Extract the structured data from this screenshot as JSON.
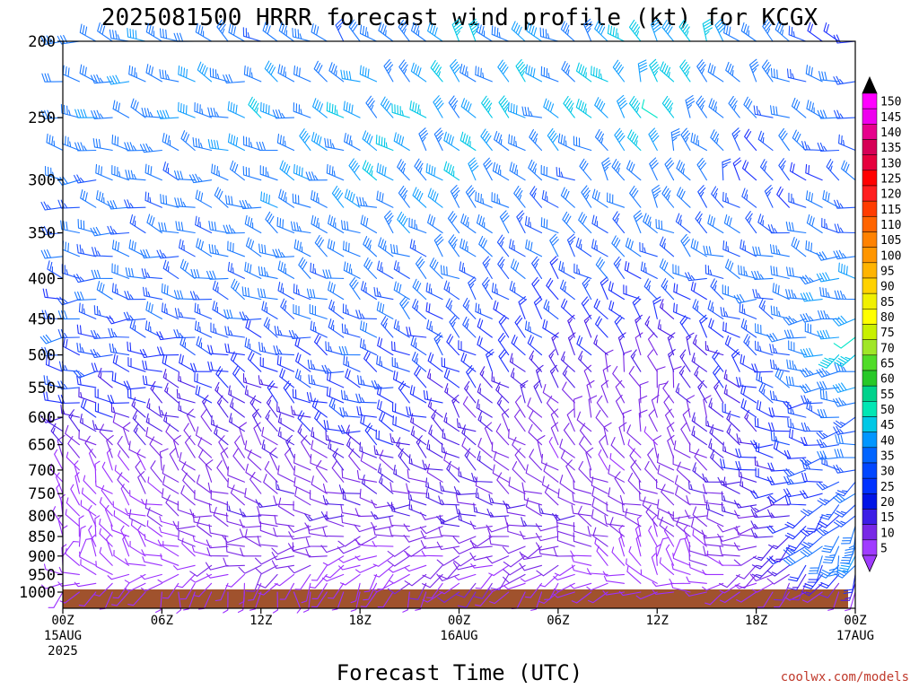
{
  "chart_data": {
    "type": "wind_barbs",
    "title": "2025081500 HRRR forecast wind profile (kt) for KCGX",
    "xlabel": "Forecast Time (UTC)",
    "credit": "coolwx.com/models",
    "units": "kt",
    "y_axis": {
      "scale": "log-pressure",
      "reversed": true,
      "range": [
        1050,
        200
      ],
      "ticks": [
        200,
        250,
        300,
        350,
        400,
        450,
        500,
        550,
        600,
        650,
        700,
        750,
        800,
        850,
        900,
        950,
        1000
      ]
    },
    "x_axis": {
      "range_hours": [
        0,
        48
      ],
      "ticks": [
        {
          "hour": 0,
          "lines": [
            "00Z",
            "15AUG",
            "2025"
          ]
        },
        {
          "hour": 6,
          "lines": [
            "06Z"
          ]
        },
        {
          "hour": 12,
          "lines": [
            "12Z"
          ]
        },
        {
          "hour": 18,
          "lines": [
            "18Z"
          ]
        },
        {
          "hour": 24,
          "lines": [
            "00Z",
            "16AUG"
          ]
        },
        {
          "hour": 30,
          "lines": [
            "06Z"
          ]
        },
        {
          "hour": 36,
          "lines": [
            "12Z"
          ]
        },
        {
          "hour": 42,
          "lines": [
            "18Z"
          ]
        },
        {
          "hour": 48,
          "lines": [
            "00Z",
            "17AUG"
          ]
        }
      ]
    },
    "colorbar": {
      "labels": [
        "150",
        "145",
        "140",
        "135",
        "130",
        "125",
        "120",
        "115",
        "110",
        "105",
        "100",
        "95",
        "90",
        "85",
        "80",
        "75",
        "70",
        "65",
        "60",
        "55",
        "50",
        "45",
        "40",
        "35",
        "30",
        "25",
        "20",
        "15",
        "10",
        "5"
      ],
      "colors": [
        "#ff00ff",
        "#ee00ee",
        "#e6008c",
        "#d60056",
        "#e6003c",
        "#ff0000",
        "#ff1e1e",
        "#ff3c00",
        "#ff6400",
        "#ff8200",
        "#ff9600",
        "#ffb400",
        "#ffd200",
        "#f0f000",
        "#ffff00",
        "#c8f000",
        "#a0e628",
        "#50dc28",
        "#28c828",
        "#00d28c",
        "#00e6b4",
        "#00c8e6",
        "#0096ff",
        "#0064ff",
        "#0046ff",
        "#0032ff",
        "#0014e6",
        "#3c1ee6",
        "#7828e6",
        "#a03cff"
      ],
      "top_arrow_color": "#000000",
      "bottom_arrow_color": "#a03cff"
    },
    "barb_colors": {
      "5": "#9b30ff",
      "10": "#7a28e6",
      "15": "#4b1ee6",
      "20": "#1e32ff",
      "25": "#1e55ff",
      "30": "#1e7bff",
      "40": "#14a0ff",
      "45": "#00c8e6",
      "50": "#00e6c8"
    },
    "ground_color": "#a0522d",
    "levels": [
      1000,
      975,
      950,
      925,
      900,
      875,
      850,
      825,
      800,
      775,
      750,
      725,
      700,
      675,
      650,
      625,
      600,
      575,
      550,
      525,
      500,
      475,
      450,
      425,
      400,
      375,
      350,
      325,
      300,
      275,
      250,
      225,
      200
    ],
    "anchors": {
      "1000": [
        [
          0,
          225,
          5
        ],
        [
          6,
          200,
          5
        ],
        [
          12,
          180,
          5
        ],
        [
          18,
          200,
          6
        ],
        [
          24,
          220,
          8
        ],
        [
          30,
          220,
          5
        ],
        [
          36,
          270,
          5
        ],
        [
          42,
          230,
          6
        ],
        [
          48,
          210,
          6
        ]
      ],
      "900": [
        [
          0,
          20,
          5
        ],
        [
          6,
          300,
          5
        ],
        [
          12,
          270,
          10
        ],
        [
          18,
          250,
          6
        ],
        [
          24,
          250,
          8
        ],
        [
          30,
          250,
          9
        ],
        [
          36,
          20,
          5
        ],
        [
          42,
          240,
          10
        ],
        [
          48,
          200,
          40
        ]
      ],
      "800": [
        [
          0,
          330,
          5
        ],
        [
          6,
          290,
          8
        ],
        [
          12,
          280,
          12
        ],
        [
          18,
          270,
          12
        ],
        [
          24,
          270,
          14
        ],
        [
          30,
          280,
          12
        ],
        [
          36,
          290,
          10
        ],
        [
          42,
          270,
          12
        ],
        [
          48,
          210,
          25
        ]
      ],
      "700": [
        [
          0,
          340,
          6
        ],
        [
          6,
          330,
          8
        ],
        [
          12,
          320,
          10
        ],
        [
          18,
          310,
          12
        ],
        [
          24,
          300,
          14
        ],
        [
          30,
          320,
          8
        ],
        [
          36,
          320,
          8
        ],
        [
          42,
          280,
          18
        ],
        [
          48,
          260,
          28
        ]
      ],
      "600": [
        [
          0,
          280,
          18
        ],
        [
          6,
          300,
          15
        ],
        [
          12,
          320,
          14
        ],
        [
          18,
          280,
          24
        ],
        [
          24,
          310,
          14
        ],
        [
          30,
          330,
          10
        ],
        [
          36,
          350,
          8
        ],
        [
          42,
          300,
          18
        ],
        [
          48,
          260,
          28
        ]
      ],
      "500": [
        [
          0,
          270,
          25
        ],
        [
          6,
          280,
          22
        ],
        [
          12,
          290,
          22
        ],
        [
          18,
          290,
          25
        ],
        [
          24,
          310,
          22
        ],
        [
          30,
          320,
          18
        ],
        [
          36,
          340,
          12
        ],
        [
          42,
          300,
          22
        ],
        [
          48,
          240,
          45
        ]
      ],
      "400": [
        [
          0,
          275,
          25
        ],
        [
          6,
          285,
          28
        ],
        [
          12,
          290,
          30
        ],
        [
          18,
          300,
          30
        ],
        [
          24,
          310,
          28
        ],
        [
          30,
          320,
          25
        ],
        [
          36,
          300,
          25
        ],
        [
          42,
          280,
          30
        ],
        [
          48,
          270,
          35
        ]
      ],
      "300": [
        [
          0,
          275,
          30
        ],
        [
          6,
          285,
          30
        ],
        [
          12,
          290,
          35
        ],
        [
          18,
          300,
          38
        ],
        [
          24,
          320,
          40
        ],
        [
          30,
          300,
          30
        ],
        [
          36,
          330,
          35
        ],
        [
          42,
          330,
          20
        ],
        [
          48,
          290,
          25
        ]
      ],
      "250": [
        [
          0,
          275,
          35
        ],
        [
          6,
          285,
          35
        ],
        [
          12,
          290,
          38
        ],
        [
          18,
          300,
          40
        ],
        [
          24,
          320,
          40
        ],
        [
          30,
          300,
          40
        ],
        [
          36,
          330,
          45
        ],
        [
          42,
          310,
          30
        ],
        [
          48,
          270,
          30
        ]
      ],
      "200": [
        [
          0,
          280,
          30
        ],
        [
          6,
          290,
          35
        ],
        [
          12,
          300,
          30
        ],
        [
          18,
          310,
          30
        ],
        [
          24,
          320,
          42
        ],
        [
          30,
          300,
          35
        ],
        [
          36,
          330,
          45
        ],
        [
          42,
          320,
          35
        ],
        [
          48,
          280,
          20
        ]
      ]
    }
  }
}
